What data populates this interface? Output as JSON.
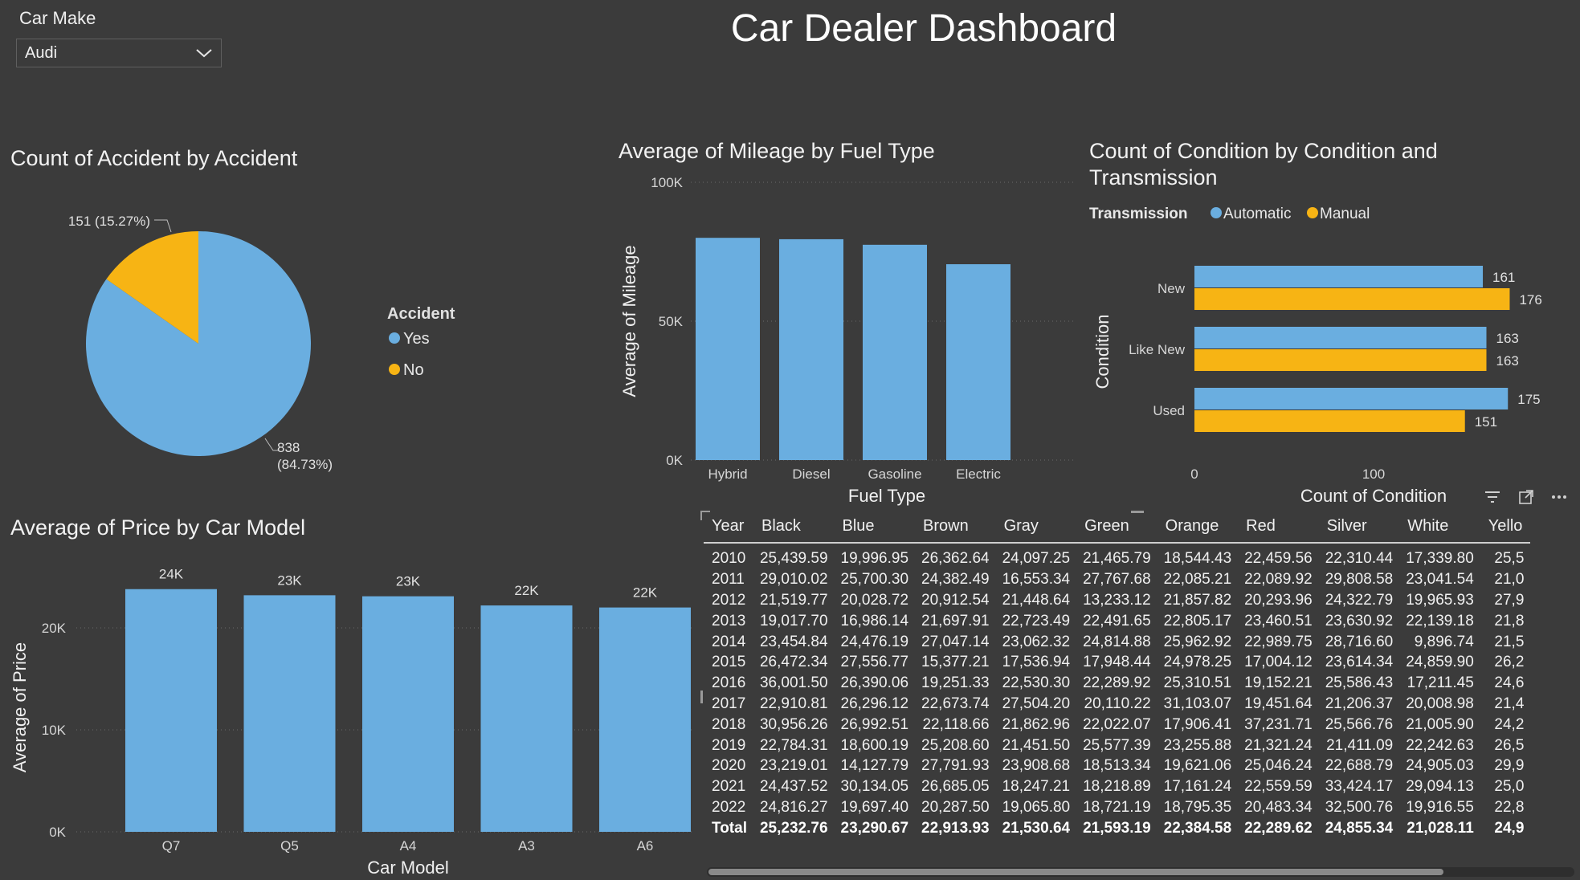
{
  "header": {
    "title": "Car Dealer Dashboard"
  },
  "slicer": {
    "label": "Car Make",
    "value": "Audi"
  },
  "accident_chart": {
    "title": "Count of Accident by Accident",
    "legend_title": "Accident",
    "legend": [
      {
        "label": "Yes",
        "color": "#6aaee0"
      },
      {
        "label": "No",
        "color": "#f7b414"
      }
    ],
    "slices": [
      {
        "name": "Yes",
        "value": 838,
        "label_line1": "838",
        "label_line2": "(84.73%)",
        "color": "#6aaee0"
      },
      {
        "name": "No",
        "value": 151,
        "label_line1": "151 (15.27%)",
        "color": "#f7b414"
      }
    ]
  },
  "mileage_chart": {
    "title": "Average of Mileage by Fuel Type",
    "xlabel": "Fuel Type",
    "ylabel": "Average of Mileage",
    "ylim": [
      0,
      100000
    ],
    "yticks": [
      {
        "value": 100000,
        "label": "100K"
      },
      {
        "value": 50000,
        "label": "50K"
      },
      {
        "value": 0,
        "label": "0K"
      }
    ],
    "categories": [
      "Hybrid",
      "Diesel",
      "Gasoline",
      "Electric"
    ],
    "values": [
      80000,
      79500,
      77500,
      70500
    ],
    "color": "#6aaee0"
  },
  "condition_chart": {
    "title_line1": "Count of Condition by Condition and",
    "title_line2": "Transmission",
    "xlabel": "Count of Condition",
    "ylabel": "Condition",
    "legend_title": "Transmission",
    "legend": [
      {
        "label": "Automatic",
        "color": "#6aaee0"
      },
      {
        "label": "Manual",
        "color": "#f7b414"
      }
    ],
    "xlim": [
      0,
      180
    ],
    "xticks": [
      {
        "value": 0,
        "label": "0"
      },
      {
        "value": 100,
        "label": "100"
      }
    ],
    "categories": [
      "New",
      "Like New",
      "Used"
    ],
    "series": [
      {
        "name": "Automatic",
        "values": [
          161,
          163,
          175
        ],
        "color": "#6aaee0"
      },
      {
        "name": "Manual",
        "values": [
          176,
          163,
          151
        ],
        "color": "#f7b414"
      }
    ]
  },
  "price_chart": {
    "title": "Average of Price by Car Model",
    "xlabel": "Car Model",
    "ylabel": "Average of Price",
    "ylim": [
      0,
      25000
    ],
    "yticks": [
      {
        "value": 20000,
        "label": "20K"
      },
      {
        "value": 10000,
        "label": "10K"
      },
      {
        "value": 0,
        "label": "0K"
      }
    ],
    "categories": [
      "Q7",
      "Q5",
      "A4",
      "A3",
      "A6"
    ],
    "values": [
      23800,
      23200,
      23100,
      22200,
      22000
    ],
    "data_labels": [
      "24K",
      "23K",
      "23K",
      "22K",
      "22K"
    ],
    "color": "#6aaee0"
  },
  "year_table": {
    "columns": [
      "Year",
      "Black",
      "Blue",
      "Brown",
      "Gray",
      "Green",
      "Orange",
      "Red",
      "Silver",
      "White",
      "Yello"
    ],
    "rows": [
      [
        "2010",
        "25,439.59",
        "19,996.95",
        "26,362.64",
        "24,097.25",
        "21,465.79",
        "18,544.43",
        "22,459.56",
        "22,310.44",
        "17,339.80",
        "25,5"
      ],
      [
        "2011",
        "29,010.02",
        "25,700.30",
        "24,382.49",
        "16,553.34",
        "27,767.68",
        "22,085.21",
        "22,089.92",
        "29,808.58",
        "23,041.54",
        "21,0"
      ],
      [
        "2012",
        "21,519.77",
        "20,028.72",
        "20,912.54",
        "21,448.64",
        "13,233.12",
        "21,857.82",
        "20,293.96",
        "24,322.79",
        "19,965.93",
        "27,9"
      ],
      [
        "2013",
        "19,017.70",
        "16,986.14",
        "21,697.91",
        "22,723.49",
        "22,491.65",
        "22,805.17",
        "23,460.51",
        "23,630.92",
        "22,139.18",
        "21,8"
      ],
      [
        "2014",
        "23,454.84",
        "24,476.19",
        "27,047.14",
        "23,062.32",
        "24,814.88",
        "25,962.92",
        "22,989.75",
        "28,716.60",
        "9,896.74",
        "21,5"
      ],
      [
        "2015",
        "26,472.34",
        "27,556.77",
        "15,377.21",
        "17,536.94",
        "17,948.44",
        "24,978.25",
        "17,004.12",
        "23,614.34",
        "24,859.90",
        "26,2"
      ],
      [
        "2016",
        "36,001.50",
        "26,390.06",
        "19,251.33",
        "22,530.30",
        "22,289.92",
        "25,310.51",
        "19,152.21",
        "25,586.43",
        "17,211.45",
        "24,6"
      ],
      [
        "2017",
        "22,910.81",
        "26,296.12",
        "22,673.74",
        "27,504.20",
        "20,110.22",
        "31,103.07",
        "19,451.64",
        "21,206.37",
        "20,008.98",
        "21,4"
      ],
      [
        "2018",
        "30,956.26",
        "26,992.51",
        "22,118.66",
        "21,862.96",
        "22,022.07",
        "17,906.41",
        "37,231.71",
        "25,566.76",
        "21,005.90",
        "24,2"
      ],
      [
        "2019",
        "22,784.31",
        "18,600.19",
        "25,208.60",
        "21,451.50",
        "25,577.39",
        "23,255.88",
        "21,321.24",
        "21,411.09",
        "22,242.63",
        "26,5"
      ],
      [
        "2020",
        "23,219.01",
        "14,127.79",
        "27,791.93",
        "23,908.68",
        "18,513.34",
        "19,621.06",
        "25,046.24",
        "22,688.79",
        "24,905.03",
        "29,9"
      ],
      [
        "2021",
        "24,437.52",
        "30,134.05",
        "26,685.05",
        "18,247.21",
        "18,218.89",
        "17,161.24",
        "22,559.59",
        "33,424.17",
        "29,094.13",
        "25,0"
      ],
      [
        "2022",
        "24,816.27",
        "19,697.40",
        "20,287.50",
        "19,065.80",
        "18,721.19",
        "18,795.35",
        "20,483.34",
        "32,500.76",
        "19,916.55",
        "22,8"
      ]
    ],
    "total": [
      "Total",
      "25,232.76",
      "23,290.67",
      "22,913.93",
      "21,530.64",
      "21,593.19",
      "22,384.58",
      "22,289.62",
      "24,855.34",
      "21,028.11",
      "24,9"
    ]
  },
  "icons": {
    "filter": "filter-icon",
    "focus": "focus-mode-icon",
    "more": "more-options-icon",
    "dropdown": "chevron-down-icon"
  }
}
